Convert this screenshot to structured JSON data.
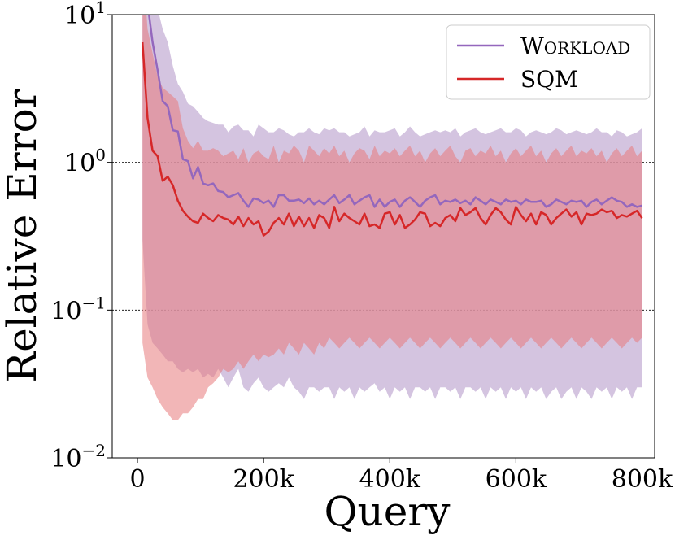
{
  "chart_data": {
    "type": "line",
    "xlabel": "Query",
    "ylabel": "Relative Error",
    "xlim": [
      -40000,
      820000
    ],
    "ylim": [
      0.01,
      10
    ],
    "yscale": "log",
    "x_ticks": [
      {
        "value": 0,
        "label": "0"
      },
      {
        "value": 200000,
        "label": "200k"
      },
      {
        "value": 400000,
        "label": "400k"
      },
      {
        "value": 600000,
        "label": "600k"
      },
      {
        "value": 800000,
        "label": "800k"
      }
    ],
    "y_ticks": [
      {
        "value": 0.01,
        "base": "10",
        "exp": "−2"
      },
      {
        "value": 0.1,
        "base": "10",
        "exp": "−1"
      },
      {
        "value": 1,
        "base": "10",
        "exp": "0"
      },
      {
        "value": 10,
        "base": "10",
        "exp": "1"
      }
    ],
    "gridlines_y": [
      0.1,
      1
    ],
    "legend_position": "top-right",
    "series": [
      {
        "name": "Workload",
        "name_display": "Workload",
        "color": "#9467bd",
        "band_color": "#c5b0d5",
        "x": [
          8000,
          16000,
          24000,
          32000,
          40000,
          48000,
          56000,
          64000,
          72000,
          80000,
          88000,
          96000,
          104000,
          112000,
          120000,
          128000,
          136000,
          144000,
          152000,
          160000,
          168000,
          176000,
          184000,
          192000,
          200000,
          208000,
          216000,
          224000,
          232000,
          240000,
          248000,
          256000,
          264000,
          272000,
          280000,
          288000,
          296000,
          304000,
          312000,
          320000,
          328000,
          336000,
          344000,
          352000,
          360000,
          368000,
          376000,
          384000,
          392000,
          400000,
          408000,
          416000,
          424000,
          432000,
          440000,
          448000,
          456000,
          464000,
          472000,
          480000,
          488000,
          496000,
          504000,
          512000,
          520000,
          528000,
          536000,
          544000,
          552000,
          560000,
          568000,
          576000,
          584000,
          592000,
          600000,
          608000,
          616000,
          624000,
          632000,
          640000,
          648000,
          656000,
          664000,
          672000,
          680000,
          688000,
          696000,
          704000,
          712000,
          720000,
          728000,
          736000,
          744000,
          752000,
          760000,
          768000,
          776000,
          784000,
          792000,
          800000
        ],
        "mean": [
          17,
          12,
          6.5,
          4.2,
          2.6,
          2.4,
          1.65,
          1.62,
          1.05,
          1.02,
          0.78,
          0.93,
          0.72,
          0.7,
          0.72,
          0.64,
          0.63,
          0.58,
          0.6,
          0.62,
          0.55,
          0.5,
          0.57,
          0.56,
          0.53,
          0.55,
          0.5,
          0.6,
          0.6,
          0.55,
          0.55,
          0.56,
          0.53,
          0.57,
          0.52,
          0.55,
          0.52,
          0.56,
          0.6,
          0.53,
          0.56,
          0.6,
          0.52,
          0.55,
          0.58,
          0.6,
          0.5,
          0.56,
          0.5,
          0.54,
          0.56,
          0.5,
          0.55,
          0.58,
          0.54,
          0.5,
          0.55,
          0.58,
          0.6,
          0.52,
          0.55,
          0.54,
          0.56,
          0.53,
          0.55,
          0.52,
          0.58,
          0.55,
          0.52,
          0.56,
          0.54,
          0.52,
          0.56,
          0.54,
          0.55,
          0.52,
          0.56,
          0.54,
          0.54,
          0.55,
          0.5,
          0.52,
          0.56,
          0.54,
          0.52,
          0.55,
          0.54,
          0.55,
          0.5,
          0.54,
          0.56,
          0.52,
          0.55,
          0.58,
          0.55,
          0.54,
          0.5,
          0.52,
          0.5,
          0.51
        ],
        "upper": [
          30,
          25,
          18,
          11,
          8,
          6.5,
          4.5,
          3.4,
          3,
          2.5,
          2.4,
          2.2,
          2.0,
          1.9,
          1.85,
          1.8,
          1.8,
          1.6,
          1.75,
          1.8,
          1.65,
          1.65,
          1.5,
          1.8,
          1.7,
          1.6,
          1.6,
          1.7,
          1.65,
          1.55,
          1.5,
          1.6,
          1.6,
          1.7,
          1.6,
          1.55,
          1.7,
          1.65,
          1.7,
          1.6,
          1.6,
          1.5,
          1.55,
          1.6,
          1.75,
          1.5,
          1.65,
          1.6,
          1.6,
          1.65,
          1.7,
          1.5,
          1.6,
          1.75,
          1.6,
          1.5,
          1.55,
          1.6,
          1.65,
          1.6,
          1.65,
          1.6,
          1.7,
          1.5,
          1.6,
          1.65,
          1.7,
          1.6,
          1.55,
          1.6,
          1.65,
          1.7,
          1.6,
          1.6,
          1.7,
          1.65,
          1.5,
          1.6,
          1.65,
          1.6,
          1.55,
          1.6,
          1.7,
          1.65,
          1.55,
          1.6,
          1.65,
          1.6,
          1.55,
          1.6,
          1.7,
          1.6,
          1.6,
          1.5,
          1.65,
          1.6,
          1.5,
          1.55,
          1.6,
          1.7
        ],
        "lower": [
          0.3,
          0.08,
          0.06,
          0.055,
          0.05,
          0.045,
          0.045,
          0.04,
          0.038,
          0.04,
          0.038,
          0.04,
          0.035,
          0.037,
          0.035,
          0.04,
          0.035,
          0.03,
          0.035,
          0.04,
          0.03,
          0.028,
          0.032,
          0.035,
          0.03,
          0.028,
          0.03,
          0.032,
          0.03,
          0.035,
          0.03,
          0.028,
          0.025,
          0.03,
          0.03,
          0.028,
          0.03,
          0.03,
          0.025,
          0.03,
          0.028,
          0.03,
          0.025,
          0.03,
          0.028,
          0.03,
          0.032,
          0.028,
          0.03,
          0.025,
          0.03,
          0.028,
          0.03,
          0.025,
          0.03,
          0.03,
          0.028,
          0.03,
          0.025,
          0.03,
          0.03,
          0.028,
          0.03,
          0.025,
          0.03,
          0.03,
          0.028,
          0.03,
          0.025,
          0.03,
          0.028,
          0.03,
          0.025,
          0.03,
          0.028,
          0.03,
          0.025,
          0.03,
          0.028,
          0.03,
          0.025,
          0.028,
          0.03,
          0.025,
          0.028,
          0.03,
          0.025,
          0.03,
          0.028,
          0.025,
          0.03,
          0.028,
          0.03,
          0.025,
          0.03,
          0.028,
          0.03,
          0.025,
          0.03,
          0.03
        ]
      },
      {
        "name": "SQM",
        "name_display": "SQM",
        "color": "#d62728",
        "band_color": "#e87a7b",
        "x": [
          8000,
          16000,
          24000,
          32000,
          40000,
          48000,
          56000,
          64000,
          72000,
          80000,
          88000,
          96000,
          104000,
          112000,
          120000,
          128000,
          136000,
          144000,
          152000,
          160000,
          168000,
          176000,
          184000,
          192000,
          200000,
          208000,
          216000,
          224000,
          232000,
          240000,
          248000,
          256000,
          264000,
          272000,
          280000,
          288000,
          296000,
          304000,
          312000,
          320000,
          328000,
          336000,
          344000,
          352000,
          360000,
          368000,
          376000,
          384000,
          392000,
          400000,
          408000,
          416000,
          424000,
          432000,
          440000,
          448000,
          456000,
          464000,
          472000,
          480000,
          488000,
          496000,
          504000,
          512000,
          520000,
          528000,
          536000,
          544000,
          552000,
          560000,
          568000,
          576000,
          584000,
          592000,
          600000,
          608000,
          616000,
          624000,
          632000,
          640000,
          648000,
          656000,
          664000,
          672000,
          680000,
          688000,
          696000,
          704000,
          712000,
          720000,
          728000,
          736000,
          744000,
          752000,
          760000,
          768000,
          776000,
          784000,
          792000,
          800000
        ],
        "mean": [
          6.5,
          2.0,
          1.2,
          1.1,
          0.75,
          0.8,
          0.7,
          0.55,
          0.47,
          0.43,
          0.4,
          0.39,
          0.45,
          0.42,
          0.4,
          0.44,
          0.42,
          0.41,
          0.38,
          0.43,
          0.37,
          0.42,
          0.38,
          0.4,
          0.32,
          0.34,
          0.39,
          0.42,
          0.38,
          0.45,
          0.37,
          0.43,
          0.37,
          0.42,
          0.36,
          0.44,
          0.42,
          0.36,
          0.5,
          0.4,
          0.45,
          0.42,
          0.4,
          0.38,
          0.45,
          0.37,
          0.38,
          0.36,
          0.45,
          0.46,
          0.38,
          0.44,
          0.36,
          0.38,
          0.41,
          0.46,
          0.45,
          0.37,
          0.39,
          0.37,
          0.42,
          0.44,
          0.4,
          0.49,
          0.44,
          0.46,
          0.49,
          0.42,
          0.38,
          0.44,
          0.49,
          0.46,
          0.41,
          0.38,
          0.5,
          0.44,
          0.4,
          0.45,
          0.38,
          0.46,
          0.44,
          0.38,
          0.42,
          0.45,
          0.48,
          0.43,
          0.46,
          0.38,
          0.45,
          0.44,
          0.45,
          0.48,
          0.46,
          0.47,
          0.42,
          0.44,
          0.43,
          0.45,
          0.47,
          0.42
        ],
        "upper": [
          25,
          8,
          5.5,
          3.8,
          3.2,
          3.0,
          2.8,
          2.6,
          1.7,
          1.4,
          1.25,
          1.4,
          1.2,
          1.2,
          1.25,
          1.2,
          1.1,
          1.15,
          1.2,
          1.05,
          1.25,
          1.0,
          1.15,
          1.2,
          1.1,
          1.05,
          1.3,
          1.0,
          1.2,
          1.15,
          1.3,
          1.2,
          1.0,
          1.3,
          1.2,
          1.1,
          1.25,
          1.15,
          1.3,
          1.1,
          1.2,
          1.0,
          1.15,
          1.25,
          1.2,
          1.05,
          1.3,
          1.1,
          1.2,
          1.15,
          1.25,
          1.1,
          1.2,
          1.3,
          1.1,
          1.2,
          1.0,
          1.15,
          1.25,
          1.1,
          1.2,
          1.3,
          1.1,
          1.0,
          1.2,
          1.25,
          1.1,
          1.2,
          1.15,
          1.3,
          1.1,
          1.2,
          1.0,
          1.15,
          1.25,
          1.1,
          1.2,
          1.3,
          1.1,
          1.2,
          1.0,
          1.15,
          1.25,
          1.1,
          1.2,
          1.3,
          1.1,
          1.2,
          1.15,
          1.25,
          1.1,
          1.2,
          1.0,
          1.15,
          1.25,
          1.1,
          1.2,
          1.3,
          1.1,
          1.2
        ],
        "lower": [
          0.06,
          0.035,
          0.03,
          0.025,
          0.022,
          0.02,
          0.018,
          0.018,
          0.02,
          0.02,
          0.022,
          0.025,
          0.025,
          0.03,
          0.032,
          0.035,
          0.04,
          0.038,
          0.04,
          0.045,
          0.04,
          0.045,
          0.05,
          0.045,
          0.05,
          0.048,
          0.05,
          0.055,
          0.05,
          0.06,
          0.055,
          0.05,
          0.06,
          0.055,
          0.05,
          0.06,
          0.055,
          0.065,
          0.06,
          0.055,
          0.06,
          0.065,
          0.06,
          0.055,
          0.06,
          0.065,
          0.06,
          0.055,
          0.06,
          0.065,
          0.06,
          0.055,
          0.06,
          0.065,
          0.06,
          0.055,
          0.06,
          0.065,
          0.06,
          0.055,
          0.06,
          0.065,
          0.06,
          0.055,
          0.06,
          0.065,
          0.06,
          0.055,
          0.06,
          0.065,
          0.06,
          0.055,
          0.06,
          0.065,
          0.06,
          0.055,
          0.06,
          0.065,
          0.06,
          0.055,
          0.06,
          0.065,
          0.06,
          0.055,
          0.06,
          0.065,
          0.06,
          0.055,
          0.06,
          0.065,
          0.06,
          0.055,
          0.06,
          0.065,
          0.06,
          0.055,
          0.06,
          0.065,
          0.06,
          0.065
        ]
      }
    ]
  }
}
